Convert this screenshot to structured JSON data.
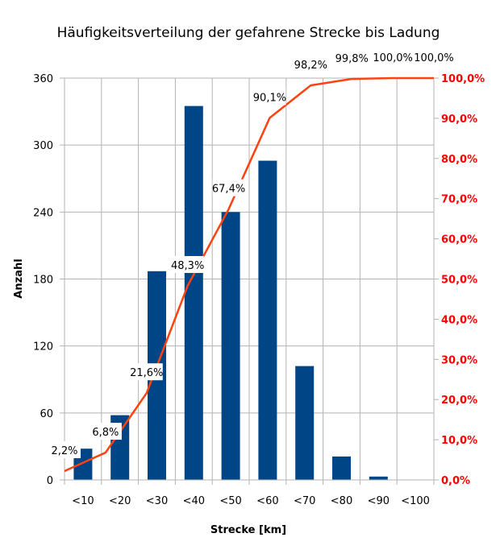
{
  "chart_data": {
    "type": "bar+line",
    "title": "Häufigkeitsverteilung der gefahrene Strecke bis Ladung",
    "xlabel": "Strecke [km]",
    "ylabel": "Anzahl",
    "categories": [
      "<10",
      "<20",
      "<30",
      "<40",
      "<50",
      "<60",
      "<70",
      "<80",
      "<90",
      "<100"
    ],
    "series": [
      {
        "type": "bar",
        "axis": "left",
        "values": [
          28,
          58,
          187,
          335,
          240,
          286,
          102,
          21,
          3,
          0
        ]
      },
      {
        "type": "line",
        "axis": "right",
        "values": [
          2.2,
          6.8,
          21.6,
          48.3,
          67.4,
          90.1,
          98.2,
          99.8,
          100.0,
          100.0
        ],
        "labels": [
          "2,2%",
          "6,8%",
          "21,6%",
          "48,3%",
          "67,4%",
          "90,1%",
          "98,2%",
          "99,8%",
          "100,0%",
          "100,0%"
        ]
      }
    ],
    "ylim": [
      0,
      360
    ],
    "yticks": [
      "0",
      "60",
      "120",
      "180",
      "240",
      "300",
      "360"
    ],
    "y2lim": [
      0,
      100
    ],
    "y2ticks": [
      "0,0%",
      "10,0%",
      "20,0%",
      "30,0%",
      "40,0%",
      "50,0%",
      "60,0%",
      "70,0%",
      "80,0%",
      "90,0%",
      "100,0%"
    ],
    "grid": true,
    "legend": "none",
    "colors": {
      "bar": "#004586",
      "line": "#ff420e",
      "right_axis": "#ff0000",
      "grid": "#b3b3b3"
    }
  }
}
